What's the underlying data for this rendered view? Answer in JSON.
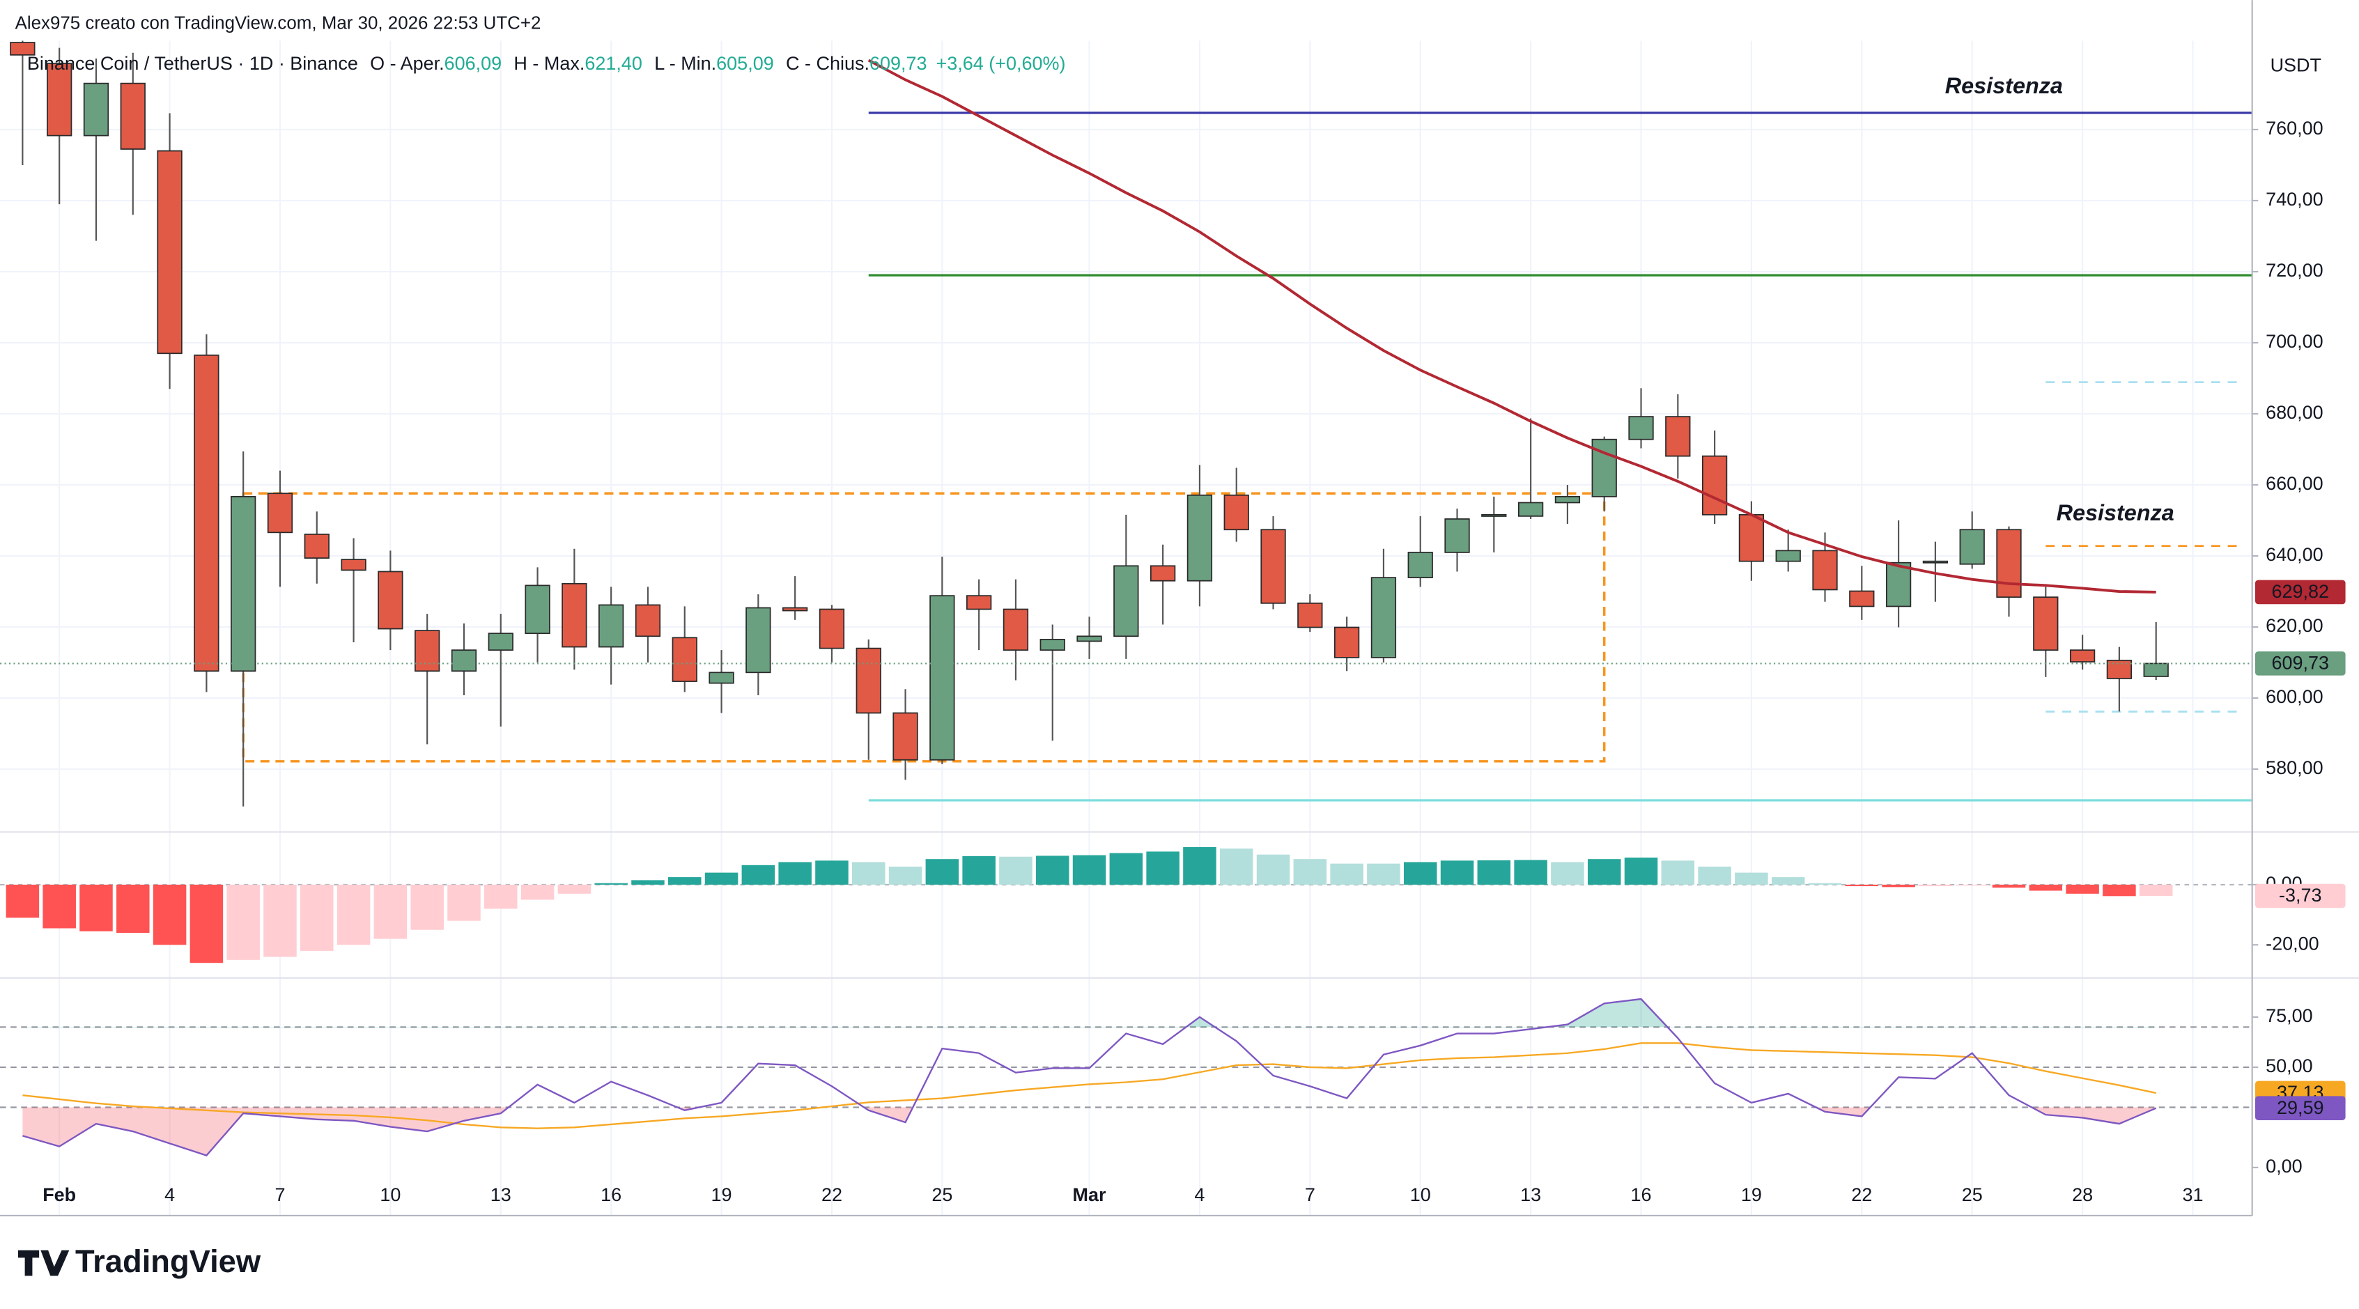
{
  "header": {
    "credit": "Alex975 creato con TradingView.com, Mar 30, 2026 22:53 UTC+2",
    "symbol": "Binance Coin / TetherUS · 1D · Binance",
    "legend": [
      {
        "label": "O - Aper.",
        "value": "606,09"
      },
      {
        "label": "H - Max.",
        "value": "621,40"
      },
      {
        "label": "L - Min.",
        "value": "605,09"
      },
      {
        "label": "C - Chius.",
        "value": "609,73"
      },
      {
        "label": "",
        "value": "+3,64 (+0,60%)"
      }
    ],
    "currency": "USDT",
    "brand": "TradingView"
  },
  "chart_data": [
    {
      "type": "candlestick",
      "categories": [
        null,
        "Feb",
        null,
        null,
        "4",
        null,
        null,
        "7",
        null,
        null,
        "10",
        null,
        null,
        "13",
        null,
        null,
        "16",
        null,
        null,
        "19",
        null,
        null,
        "22",
        null,
        null,
        "25",
        null,
        null,
        null,
        "Mar",
        null,
        null,
        "4",
        null,
        null,
        "7",
        null,
        null,
        "10",
        null,
        null,
        "13",
        null,
        null,
        "16",
        null,
        null,
        "19",
        null,
        null,
        "22",
        null,
        null,
        "25",
        null,
        null,
        "28",
        null,
        null,
        "31"
      ],
      "open": [
        784.5,
        778.6,
        758.3,
        773,
        754,
        696.5,
        607.6,
        657.6,
        646.1,
        639,
        635.6,
        619,
        607.6,
        613.5,
        618.2,
        632.2,
        614.4,
        626.2,
        617,
        604.2,
        607.2,
        625.4,
        625,
        614,
        595.8,
        582.6,
        628.8,
        625,
        613.5,
        616,
        617.4,
        637.2,
        633,
        657.1,
        647.4,
        626.7,
        619.9,
        611.4,
        633.9,
        641,
        651.2,
        651.2,
        655,
        656.7,
        672.8,
        679.2,
        668.1,
        651.6,
        638.5,
        641.5,
        630.1,
        625.8,
        638.1,
        637.7,
        647.4,
        628.4,
        613.5,
        610.6,
        606.09,
        null
      ],
      "high": [
        790,
        783,
        780,
        781.6,
        764.6,
        702.4,
        669.4,
        664,
        652.5,
        645,
        641.5,
        623.7,
        621,
        623.7,
        636.8,
        642,
        631.3,
        631.3,
        625.8,
        613.5,
        629.2,
        634.3,
        626.2,
        616.5,
        602.5,
        639.8,
        633.4,
        633.4,
        620.7,
        622.9,
        651.6,
        643.2,
        665.6,
        664.8,
        651.2,
        629.2,
        622.9,
        642,
        651.2,
        653.3,
        656.7,
        678.7,
        660,
        673.6,
        687.2,
        685.5,
        675.3,
        655.4,
        647.4,
        646.6,
        637.2,
        650,
        644,
        652.5,
        648.3,
        631.3,
        617.8,
        614.4,
        621.4,
        null
      ],
      "low": [
        750,
        739,
        728.7,
        736,
        687,
        601.7,
        569.5,
        631.3,
        632.2,
        615.7,
        613.5,
        587,
        600.8,
        592,
        610,
        608,
        603.8,
        610,
        601.7,
        595.8,
        600.8,
        622,
        610,
        582.6,
        577,
        581.4,
        613.5,
        605,
        588,
        611,
        611,
        620.7,
        625.8,
        644,
        625,
        618.6,
        607.6,
        610,
        631.3,
        635.6,
        641,
        650.4,
        649,
        652.5,
        670.3,
        661.8,
        649,
        633,
        635.6,
        627.1,
        622,
        619.9,
        627.1,
        636.4,
        622.9,
        605.9,
        608,
        596.2,
        605.09,
        null
      ],
      "close": [
        781,
        758.3,
        773,
        754.5,
        697,
        607.6,
        656.7,
        646.6,
        639.4,
        636,
        619.5,
        607.6,
        613.5,
        618.2,
        631.7,
        614.4,
        626.2,
        617.4,
        604.7,
        607.2,
        625.4,
        624.6,
        614,
        595.8,
        582.6,
        628.8,
        625,
        613.5,
        616.5,
        617.4,
        637.2,
        633,
        657.1,
        647.4,
        626.7,
        619.9,
        611.4,
        633.9,
        641,
        650.4,
        651.6,
        655,
        656.7,
        672.8,
        679.2,
        668.1,
        651.6,
        638.5,
        641.5,
        630.5,
        625.8,
        638.1,
        638.5,
        647.4,
        628.4,
        613.5,
        610.2,
        605.5,
        609.73,
        null
      ],
      "last_label": "609,73",
      "up_color": "#6a9f80",
      "down_color": "#e05a46",
      "series": [
        {
          "name": "MA",
          "color": "#b22833",
          "last_label": "629,82",
          "values": [
            null,
            null,
            null,
            null,
            null,
            null,
            null,
            null,
            null,
            null,
            null,
            null,
            null,
            null,
            null,
            null,
            null,
            null,
            null,
            null,
            null,
            null,
            null,
            779.5,
            774,
            769.3,
            763.8,
            758.3,
            752.8,
            747.7,
            742.2,
            737.1,
            731.2,
            724.4,
            718.1,
            710.9,
            704.1,
            697.8,
            692.3,
            687.6,
            683,
            677.9,
            673.2,
            669,
            665.2,
            661,
            656.3,
            651.6,
            646.6,
            643.2,
            639.8,
            637.2,
            635.1,
            633.4,
            632.2,
            631.7,
            630.9,
            630,
            629.82,
            null
          ]
        }
      ],
      "lines": [
        {
          "price": 764.7,
          "color": "#3b3aa8",
          "style": "solid",
          "from": 23
        },
        {
          "price": 719,
          "color": "#2e8b2e",
          "style": "solid",
          "from": 23
        },
        {
          "price": 571.2,
          "color": "#7fdede",
          "style": "solid",
          "from": 23
        },
        {
          "price": 688.9,
          "color": "#a8e0f0",
          "style": "dashed",
          "from": 55
        },
        {
          "price": 596.2,
          "color": "#a8e0f0",
          "style": "dashed",
          "from": 55
        },
        {
          "price": 642.8,
          "color": "#f7941d",
          "style": "dashed",
          "from": 55
        }
      ],
      "box": {
        "top": 657.6,
        "bottom": 582.2,
        "from": 6,
        "to": 43,
        "color": "#f7941d"
      },
      "annotations": [
        {
          "text": "Resistenza",
          "color": "#9c3fc0"
        },
        {
          "text": "Resistenza",
          "color": "#f7941d"
        }
      ],
      "ylim": [
        562.3,
        785
      ],
      "yticks": [
        {
          "value": 580,
          "label": "580,00"
        },
        {
          "value": 600,
          "label": "600,00"
        },
        {
          "value": 620,
          "label": "620,00"
        },
        {
          "value": 640,
          "label": "640,00"
        },
        {
          "value": 660,
          "label": "660,00"
        },
        {
          "value": 680,
          "label": "680,00"
        },
        {
          "value": 700,
          "label": "700,00"
        },
        {
          "value": 720,
          "label": "720,00"
        },
        {
          "value": 740,
          "label": "740,00"
        },
        {
          "value": 760,
          "label": "760,00"
        }
      ],
      "grid": true
    },
    {
      "type": "histogram",
      "values": [
        -11,
        -14.5,
        -15.5,
        -16,
        -20,
        -26,
        -25,
        -24,
        -22,
        -20,
        -18,
        -15,
        -12,
        -8,
        -5,
        -3,
        0.5,
        1.5,
        2.5,
        4,
        6.5,
        7.5,
        8,
        7.5,
        6,
        8.5,
        9.5,
        9.3,
        9.6,
        9.8,
        10.5,
        11,
        12.5,
        12,
        10,
        8.5,
        7,
        7,
        7.5,
        8,
        8.1,
        8.2,
        7.5,
        8.5,
        9,
        8,
        6,
        4,
        2.5,
        0.5,
        -0.5,
        -0.8,
        -0.5,
        -0.3,
        -1,
        -2,
        -3,
        -3.8,
        -3.73,
        null
      ],
      "last_label": "-3,73",
      "colors": {
        "up_strong": "#26a69a",
        "up_weak": "#b2dfdb",
        "down_strong": "#ff5252",
        "down_weak": "#ffcdd2"
      },
      "ylim": [
        -31,
        17.5
      ],
      "yticks": [
        {
          "value": 0,
          "label": "0,00"
        },
        {
          "value": -20,
          "label": "-20,00"
        }
      ]
    },
    {
      "type": "line",
      "series": [
        {
          "name": "RSI",
          "color": "#7e57c2",
          "last_label": "29,59",
          "values": [
            15.8,
            10.5,
            21.8,
            18,
            12,
            6,
            27,
            25.5,
            24,
            23.3,
            20.3,
            18,
            23.3,
            27,
            41.3,
            32.3,
            42.8,
            36,
            28.5,
            32.3,
            51.8,
            51,
            40.5,
            28.5,
            22.5,
            59.3,
            57,
            47.3,
            49.5,
            49.5,
            66.8,
            61.5,
            75,
            63,
            45.8,
            40.5,
            34.5,
            56.3,
            60.8,
            66.8,
            66.8,
            69,
            71.3,
            81.8,
            84,
            64.5,
            42,
            32.3,
            36.8,
            27.8,
            25.5,
            45,
            44.3,
            57,
            36,
            26.3,
            24.8,
            21.8,
            29.59,
            null
          ]
        },
        {
          "name": "RSI MA",
          "color": "#f7a823",
          "last_label": "37,13",
          "values": [
            36,
            34,
            32,
            30.5,
            29.5,
            28.5,
            27.5,
            27,
            26.5,
            26,
            25,
            23.5,
            21.5,
            20,
            19.5,
            20,
            21.5,
            23,
            24.5,
            25.5,
            27,
            28.5,
            30.5,
            32.5,
            33.5,
            34.5,
            36.5,
            38.5,
            40,
            41.5,
            42.5,
            44,
            47.5,
            51,
            51.5,
            50,
            49.5,
            51.5,
            53.5,
            54.5,
            55,
            56,
            57,
            59,
            62,
            62,
            60,
            58.5,
            58,
            57.5,
            57,
            56.5,
            56,
            55,
            52,
            48,
            44.5,
            41,
            37.13,
            null
          ]
        }
      ],
      "levels": [
        70,
        50,
        30
      ],
      "ylim": [
        -3,
        94.5
      ],
      "yticks": [
        {
          "value": 75,
          "label": "75,00"
        },
        {
          "value": 50,
          "label": "50,00"
        },
        {
          "value": 0,
          "label": "0,00"
        }
      ]
    }
  ]
}
